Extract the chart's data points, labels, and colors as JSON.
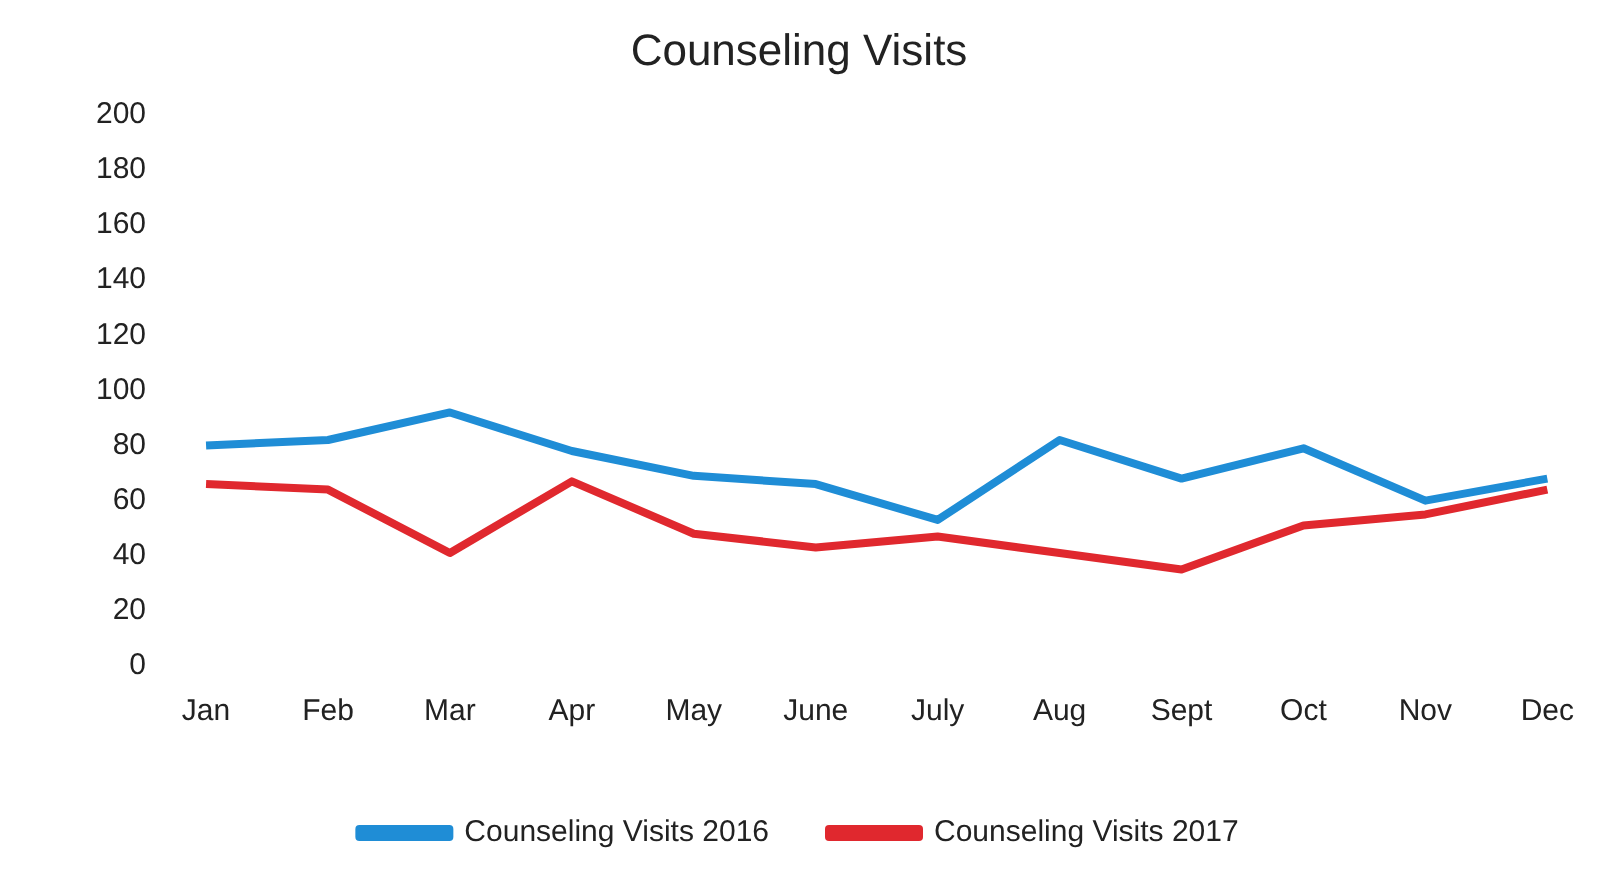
{
  "chart_data": {
    "type": "line",
    "title": "Counseling Visits",
    "categories": [
      "Jan",
      "Feb",
      "Mar",
      "Apr",
      "May",
      "June",
      "July",
      "Aug",
      "Sept",
      "Oct",
      "Nov",
      "Dec"
    ],
    "series": [
      {
        "name": "Counseling Visits 2016",
        "color": "#1f8dd6",
        "values": [
          80,
          82,
          92,
          78,
          69,
          66,
          53,
          82,
          68,
          79,
          60,
          68
        ]
      },
      {
        "name": "Counseling Visits 2017",
        "color": "#e0282e",
        "values": [
          66,
          64,
          41,
          67,
          48,
          43,
          47,
          41,
          35,
          51,
          55,
          64
        ]
      }
    ],
    "ylim": [
      0,
      200
    ],
    "yticks": [
      0,
      20,
      40,
      60,
      80,
      100,
      120,
      140,
      160,
      180,
      200
    ],
    "grid": false,
    "legend": "bottom",
    "marker": "none",
    "line_style": "solid"
  }
}
